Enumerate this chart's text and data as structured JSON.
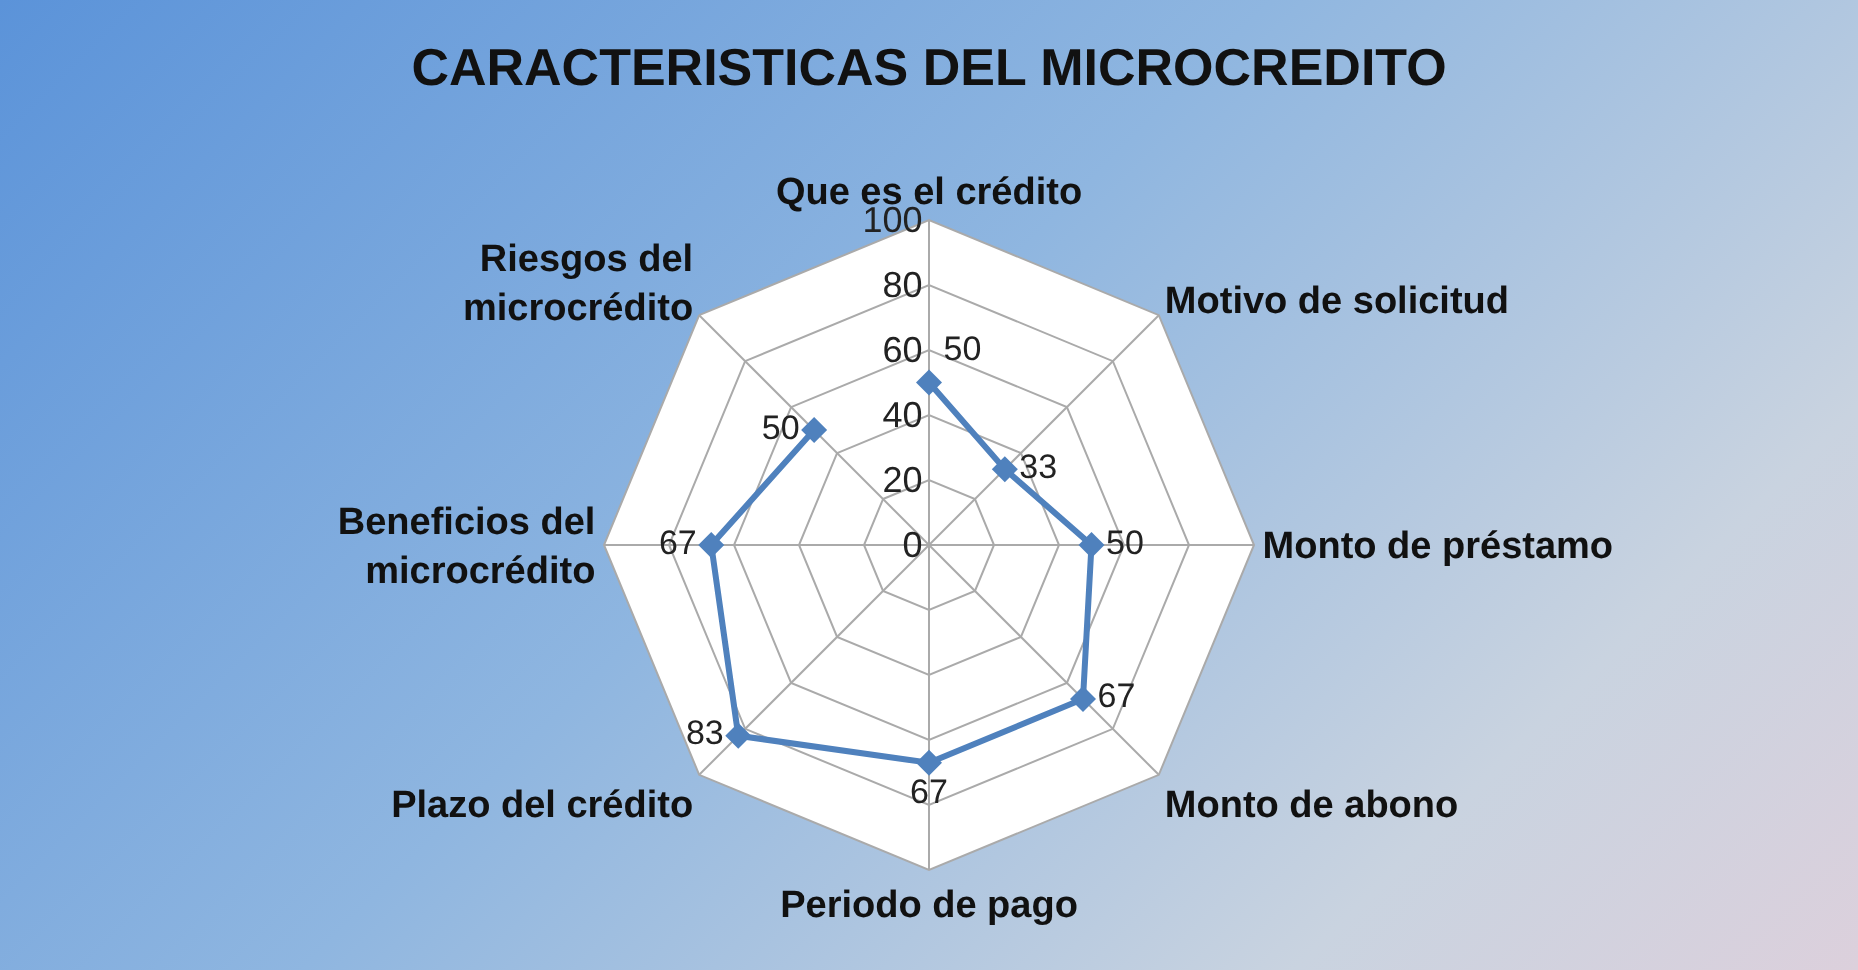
{
  "chart_data": {
    "type": "radar",
    "title": "CARACTERISTICAS DEL MICROCREDITO",
    "categories": [
      "Que es el crédito",
      "Motivo de solicitud",
      "Monto de préstamo",
      "Monto de abono",
      "Periodo de pago",
      "Plazo del crédito",
      "Beneficios del microcrédito",
      "Riesgos del microcrédito"
    ],
    "series": [
      {
        "color": "#4f81bd",
        "values": [
          50,
          33,
          50,
          67,
          67,
          83,
          67,
          50
        ]
      }
    ],
    "ylim": [
      0,
      100
    ],
    "yticks": [
      0,
      20,
      40,
      60,
      80,
      100
    ],
    "grid": true,
    "marker": "diamond",
    "line_style": "solid",
    "data_labels": true,
    "legend": false
  }
}
